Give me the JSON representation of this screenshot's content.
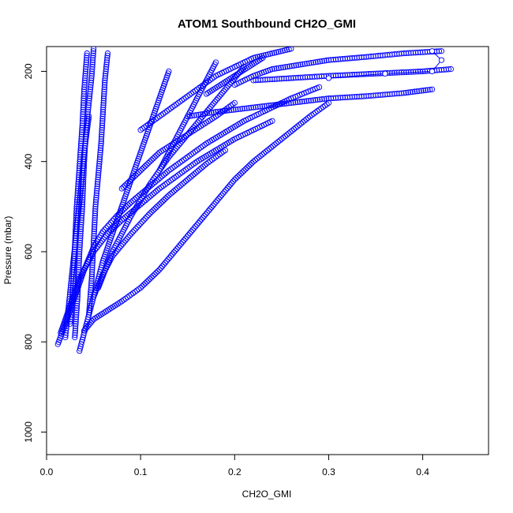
{
  "chart_data": {
    "type": "scatter",
    "title": "ATOM1 Southbound CH2O_GMI",
    "xlabel": "CH2O_GMI",
    "ylabel": "Pressure (mbar)",
    "xlim": [
      0.0,
      0.47
    ],
    "ylim": [
      1050,
      145
    ],
    "y_reversed": true,
    "x_ticks": [
      0.0,
      0.1,
      0.2,
      0.3,
      0.4
    ],
    "x_tick_labels": [
      "0.0",
      "0.1",
      "0.2",
      "0.3",
      "0.4"
    ],
    "y_ticks": [
      200,
      400,
      600,
      800,
      1000
    ],
    "y_tick_labels": [
      "200",
      "400",
      "600",
      "800",
      "1000"
    ],
    "grid": false,
    "marker": "open-circle",
    "color": "#0000ff",
    "series": [
      {
        "x": [
          0.012,
          0.02,
          0.03,
          0.04,
          0.05,
          0.06,
          0.075,
          0.09,
          0.11,
          0.13,
          0.15,
          0.17,
          0.19,
          0.21,
          0.23,
          0.26,
          0.29
        ],
        "y": [
          805,
          760,
          700,
          640,
          590,
          555,
          520,
          490,
          455,
          420,
          390,
          360,
          335,
          310,
          290,
          260,
          235
        ]
      },
      {
        "x": [
          0.015,
          0.025,
          0.035,
          0.05,
          0.065,
          0.08,
          0.1,
          0.12,
          0.14,
          0.16,
          0.18,
          0.2,
          0.22,
          0.24
        ],
        "y": [
          780,
          720,
          660,
          600,
          560,
          530,
          495,
          460,
          430,
          400,
          375,
          350,
          330,
          310
        ]
      },
      {
        "x": [
          0.035,
          0.04,
          0.045,
          0.05,
          0.06,
          0.07,
          0.09,
          0.11,
          0.13,
          0.15,
          0.17,
          0.19
        ],
        "y": [
          820,
          780,
          740,
          700,
          650,
          610,
          560,
          515,
          475,
          440,
          405,
          375
        ]
      },
      {
        "x": [
          0.04,
          0.05,
          0.065,
          0.08,
          0.1,
          0.12,
          0.14,
          0.16,
          0.18,
          0.2,
          0.22,
          0.25,
          0.28,
          0.3
        ],
        "y": [
          775,
          750,
          730,
          710,
          680,
          640,
          590,
          540,
          490,
          440,
          400,
          350,
          300,
          270
        ]
      },
      {
        "x": [
          0.03,
          0.033,
          0.035,
          0.038,
          0.04,
          0.042,
          0.045,
          0.048,
          0.05
        ],
        "y": [
          790,
          700,
          600,
          500,
          400,
          330,
          270,
          210,
          150
        ]
      },
      {
        "x": [
          0.025,
          0.028,
          0.03,
          0.032,
          0.035,
          0.038,
          0.04,
          0.043
        ],
        "y": [
          760,
          680,
          590,
          500,
          410,
          320,
          240,
          160
        ]
      },
      {
        "x": [
          0.045,
          0.048,
          0.05,
          0.052,
          0.055,
          0.058,
          0.06,
          0.062,
          0.065
        ],
        "y": [
          740,
          660,
          580,
          500,
          430,
          360,
          290,
          220,
          160
        ]
      },
      {
        "x": [
          0.05,
          0.06,
          0.07,
          0.08,
          0.09,
          0.1,
          0.11,
          0.12,
          0.13
        ],
        "y": [
          700,
          620,
          560,
          500,
          440,
          380,
          320,
          260,
          200
        ]
      },
      {
        "x": [
          0.055,
          0.07,
          0.09,
          0.11,
          0.13,
          0.15,
          0.17,
          0.19,
          0.21
        ],
        "y": [
          680,
          600,
          520,
          450,
          390,
          340,
          290,
          240,
          190
        ]
      },
      {
        "x": [
          0.02,
          0.024,
          0.028,
          0.032,
          0.036,
          0.04,
          0.045
        ],
        "y": [
          790,
          710,
          630,
          550,
          470,
          380,
          300
        ]
      },
      {
        "x": [
          0.15,
          0.18,
          0.22,
          0.26,
          0.3,
          0.34,
          0.38,
          0.41
        ],
        "y": [
          300,
          290,
          280,
          270,
          260,
          255,
          248,
          240
        ]
      },
      {
        "x": [
          0.22,
          0.26,
          0.3,
          0.35,
          0.4,
          0.43
        ],
        "y": [
          220,
          215,
          210,
          205,
          200,
          195
        ]
      },
      {
        "x": [
          0.1,
          0.12,
          0.14,
          0.16,
          0.18,
          0.2,
          0.22,
          0.24,
          0.26
        ],
        "y": [
          330,
          300,
          270,
          240,
          210,
          190,
          170,
          160,
          150
        ]
      },
      {
        "x": [
          0.2,
          0.22,
          0.24,
          0.27,
          0.3,
          0.34,
          0.38,
          0.42
        ],
        "y": [
          230,
          210,
          195,
          185,
          175,
          168,
          160,
          155
        ]
      },
      {
        "x": [
          0.12,
          0.13,
          0.14,
          0.15,
          0.16,
          0.17,
          0.18
        ],
        "y": [
          420,
          380,
          340,
          300,
          260,
          220,
          180
        ]
      },
      {
        "x": [
          0.17,
          0.185,
          0.2,
          0.215,
          0.23
        ],
        "y": [
          250,
          230,
          210,
          190,
          170
        ]
      },
      {
        "x": [
          0.08,
          0.1,
          0.12,
          0.15,
          0.18,
          0.2
        ],
        "y": [
          460,
          420,
          380,
          340,
          300,
          270
        ]
      }
    ],
    "connected_segment": {
      "x": [
        0.3,
        0.36,
        0.41,
        0.42,
        0.41
      ],
      "y": [
        215,
        205,
        200,
        175,
        155
      ]
    }
  }
}
